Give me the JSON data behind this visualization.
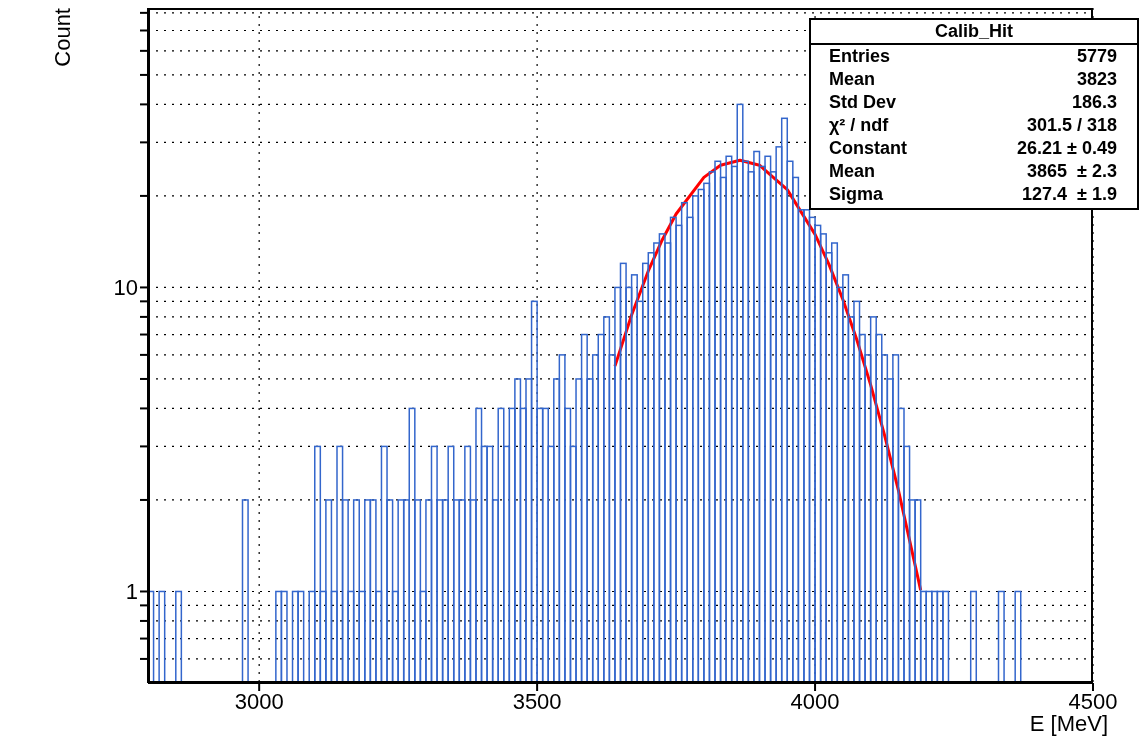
{
  "chart_data": {
    "type": "histogram",
    "title": "Calib_Hit",
    "xlabel": "E [MeV]",
    "ylabel": "Count",
    "log": "y",
    "grid": true,
    "bins": [
      2800,
      2810,
      2820,
      2830,
      2840,
      2850,
      2860,
      2870,
      2880,
      2890,
      2900,
      2910,
      2920,
      2930,
      2940,
      2950,
      2960,
      2970,
      2980,
      2990,
      3000,
      3010,
      3020,
      3030,
      3040,
      3050,
      3060,
      3070,
      3080,
      3090,
      3100,
      3110,
      3120,
      3130,
      3140,
      3150,
      3160,
      3170,
      3180,
      3190,
      3200,
      3210,
      3220,
      3230,
      3240,
      3250,
      3260,
      3270,
      3280,
      3290,
      3300,
      3310,
      3320,
      3330,
      3340,
      3350,
      3360,
      3370,
      3380,
      3390,
      3400,
      3410,
      3420,
      3430,
      3440,
      3450,
      3460,
      3470,
      3480,
      3490,
      3500,
      3510,
      3520,
      3530,
      3540,
      3550,
      3560,
      3570,
      3580,
      3590,
      3600,
      3610,
      3620,
      3630,
      3640,
      3650,
      3660,
      3670,
      3680,
      3690,
      3700,
      3710,
      3720,
      3730,
      3740,
      3750,
      3760,
      3770,
      3780,
      3790,
      3800,
      3810,
      3820,
      3830,
      3840,
      3850,
      3860,
      3870,
      3880,
      3890,
      3900,
      3910,
      3920,
      3930,
      3940,
      3950,
      3960,
      3970,
      3980,
      3990,
      4000,
      4010,
      4020,
      4030,
      4040,
      4050,
      4060,
      4070,
      4080,
      4090,
      4100,
      4110,
      4120,
      4130,
      4140,
      4150,
      4160,
      4170,
      4180,
      4190,
      4200,
      4210,
      4220,
      4230,
      4240,
      4250,
      4260,
      4270,
      4280,
      4290,
      4300,
      4310,
      4320,
      4330,
      4340,
      4350,
      4360,
      4370,
      4380,
      4390,
      4400,
      4410,
      4420,
      4430,
      4440,
      4450,
      4460,
      4470,
      4480,
      4490,
      4500
    ],
    "values": [
      1,
      null,
      1,
      null,
      null,
      1,
      null,
      null,
      null,
      null,
      null,
      null,
      null,
      null,
      null,
      null,
      null,
      2,
      null,
      null,
      null,
      null,
      null,
      1,
      1,
      null,
      1,
      1,
      null,
      1,
      3,
      1,
      2,
      1,
      3,
      2,
      1,
      2,
      1,
      2,
      2,
      1,
      3,
      2,
      1,
      2,
      2,
      4,
      2,
      1,
      2,
      3,
      2,
      2,
      3,
      2,
      2,
      3,
      2,
      4,
      3,
      3,
      2,
      4,
      3,
      4,
      5,
      4,
      5,
      9,
      4,
      4,
      3,
      5,
      6,
      4,
      3,
      5,
      7,
      5,
      6,
      7,
      8,
      6,
      10,
      12,
      10,
      11,
      9,
      12,
      13,
      14,
      15,
      14,
      17,
      16,
      19,
      17,
      20,
      21,
      22,
      24,
      26,
      23,
      27,
      25,
      40,
      26,
      24,
      28,
      25,
      27,
      24,
      29,
      36,
      26,
      23,
      18,
      18,
      17,
      16,
      15,
      13,
      14,
      10,
      11,
      8,
      9,
      7,
      6,
      8,
      7,
      6,
      5,
      6,
      4,
      3,
      2,
      2,
      1,
      1,
      1,
      1,
      1,
      null,
      null,
      null,
      null,
      1,
      null,
      null,
      null,
      null,
      1,
      null,
      null,
      1,
      null,
      null,
      null,
      null,
      null,
      null,
      null,
      null,
      null,
      null,
      null,
      null,
      null
    ],
    "color": "#3366cc",
    "series": [
      {
        "type": "line",
        "color": "#ff0000",
        "x": [
          3640,
          3670,
          3700,
          3725,
          3750,
          3800,
          3830,
          3865,
          3900,
          3950,
          4000,
          4025,
          4050,
          4075,
          4100,
          4125,
          4150,
          4190
        ],
        "values": [
          5.51,
          8.12,
          11.33,
          14.33,
          17.44,
          23.01,
          25.24,
          26.21,
          25.24,
          20.98,
          14.95,
          11.91,
          9.13,
          6.74,
          4.78,
          3.27,
          2.15,
          1.01
        ]
      }
    ],
    "xlim": [
      2800,
      4500
    ],
    "xticks": [
      3000,
      3500,
      4000,
      4500
    ],
    "ylim": [
      0.5,
      83
    ],
    "yticks": [
      {
        "value": 0.6,
        "label": null
      },
      {
        "value": 0.7,
        "label": null
      },
      {
        "value": 0.8,
        "label": null
      },
      {
        "value": 0.9,
        "label": null
      },
      1,
      {
        "value": 2,
        "label": null
      },
      {
        "value": 3,
        "label": null
      },
      {
        "value": 4,
        "label": null
      },
      {
        "value": 5,
        "label": null
      },
      {
        "value": 6,
        "label": null
      },
      {
        "value": 7,
        "label": null
      },
      {
        "value": 8,
        "label": null
      },
      {
        "value": 9,
        "label": null
      },
      10,
      {
        "value": 20,
        "label": null
      },
      {
        "value": 30,
        "label": null
      },
      {
        "value": 40,
        "label": null
      },
      {
        "value": 50,
        "label": null
      },
      {
        "value": 60,
        "label": null
      },
      {
        "value": 70,
        "label": null
      },
      {
        "value": 80,
        "label": null
      }
    ],
    "annotations": [
      "Entries",
      "5779",
      "Mean",
      "3823",
      "Std Dev",
      "186.3",
      "χ² / ndf",
      "301.5 / 318",
      "Constant",
      "26.21 ± 0.49",
      "Mean",
      "3865  ± 2.3",
      "Sigma",
      "127.4  ± 1.9"
    ]
  }
}
